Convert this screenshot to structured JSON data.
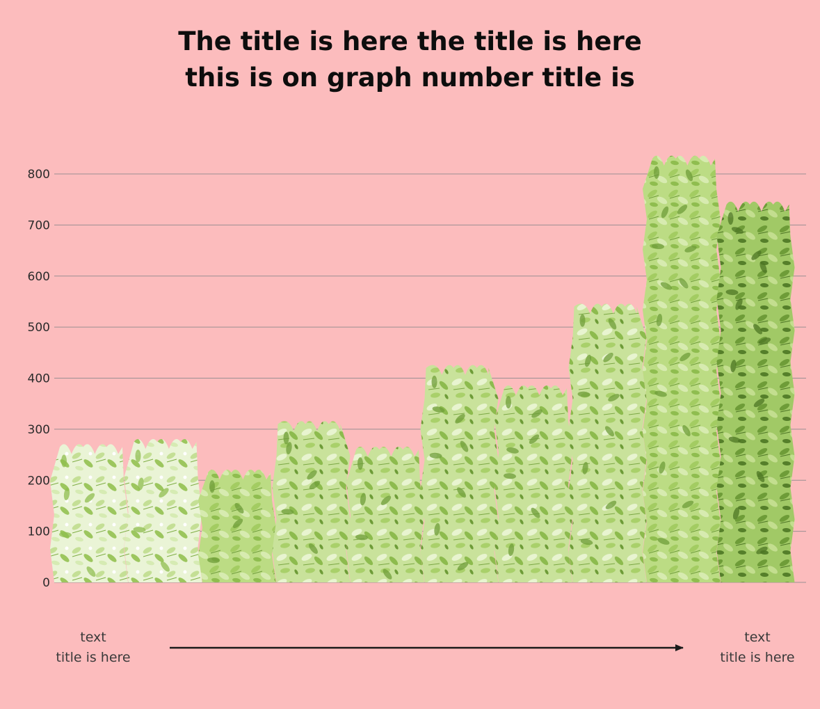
{
  "chart_data": {
    "type": "bar",
    "title_lines": [
      "The title is here the title is here",
      "this is on graph number title is"
    ],
    "categories": [
      "",
      "",
      "",
      "",
      "",
      "",
      "",
      "",
      "",
      ""
    ],
    "values": [
      265,
      275,
      215,
      310,
      260,
      420,
      380,
      540,
      830,
      740
    ],
    "ylim": [
      0,
      800
    ],
    "yticks": [
      0,
      100,
      200,
      300,
      400,
      500,
      600,
      700,
      800
    ],
    "grid": true,
    "colors": {
      "background": "#fcbcbd",
      "gridline": "#9a8f92",
      "arrow": "#1a1a1a",
      "foliage_light": "#e6f2c8",
      "foliage_mid": "#b5d77a",
      "foliage_dark": "#6f9d3a"
    },
    "bar_styles": [
      "pale",
      "pale",
      "mid",
      "mixed",
      "mixed",
      "mixed",
      "mixed",
      "mixed",
      "mid",
      "dark"
    ]
  },
  "captions": {
    "left": {
      "line1": "text",
      "line2": "title is here"
    },
    "right": {
      "line1": "text",
      "line2": "title is here"
    }
  }
}
